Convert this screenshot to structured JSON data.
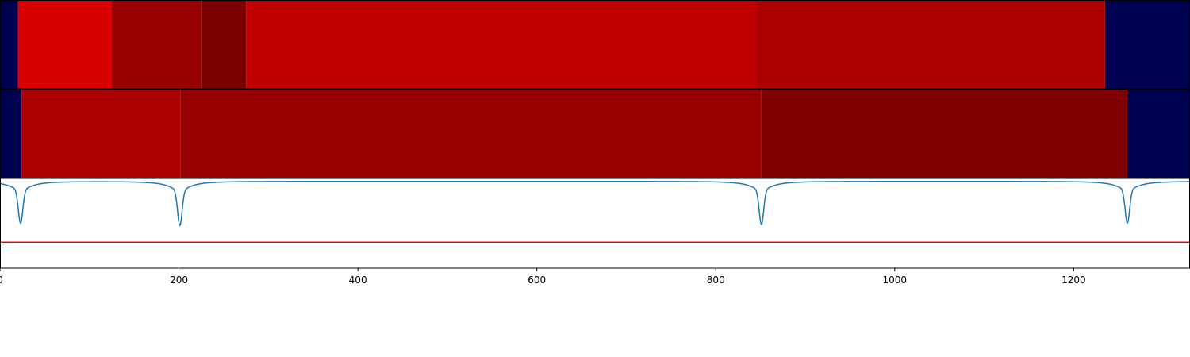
{
  "chart_data": [
    {
      "type": "heatmap",
      "title": "",
      "xlabel": "",
      "ylabel": "",
      "xlim": [
        0,
        1330
      ],
      "segments": [
        {
          "start": 0,
          "end": 20,
          "color": "#000050"
        },
        {
          "start": 20,
          "end": 125,
          "color": "#d90000"
        },
        {
          "start": 125,
          "end": 225,
          "color": "#970000"
        },
        {
          "start": 225,
          "end": 275,
          "color": "#7a0000"
        },
        {
          "start": 275,
          "end": 845,
          "color": "#c00000"
        },
        {
          "start": 845,
          "end": 1235,
          "color": "#ab0000"
        },
        {
          "start": 1235,
          "end": 1330,
          "color": "#000050"
        }
      ]
    },
    {
      "type": "heatmap",
      "title": "",
      "xlabel": "",
      "ylabel": "",
      "xlim": [
        0,
        1330
      ],
      "segments": [
        {
          "start": 0,
          "end": 24,
          "color": "#000050"
        },
        {
          "start": 24,
          "end": 202,
          "color": "#ab0000"
        },
        {
          "start": 202,
          "end": 851,
          "color": "#970000"
        },
        {
          "start": 851,
          "end": 1260,
          "color": "#7f0000"
        },
        {
          "start": 1260,
          "end": 1330,
          "color": "#000050"
        }
      ]
    },
    {
      "type": "line",
      "title": "",
      "xlabel": "",
      "ylabel": "",
      "xlim": [
        0,
        1330
      ],
      "ylim": [
        -1.5,
        0.05
      ],
      "grid": false,
      "series": [
        {
          "color": "#1f77b4",
          "baseline": 0,
          "dips": [
            {
              "x": 23,
              "depth": -0.72,
              "width": 2.5,
              "skirt_width": 14
            },
            {
              "x": 201,
              "depth": -0.76,
              "width": 2.5,
              "skirt_width": 14
            },
            {
              "x": 851,
              "depth": -0.74,
              "width": 2.5,
              "skirt_width": 14
            },
            {
              "x": 1260,
              "depth": -0.72,
              "width": 2.5,
              "skirt_width": 14
            }
          ]
        },
        {
          "color": "#ff0000",
          "constant": -1.05
        }
      ],
      "xticks": [
        0,
        200,
        400,
        600,
        800,
        1000,
        1200
      ],
      "tick_labels": [
        "0",
        "200",
        "400",
        "600",
        "800",
        "1000",
        "1200"
      ]
    }
  ]
}
